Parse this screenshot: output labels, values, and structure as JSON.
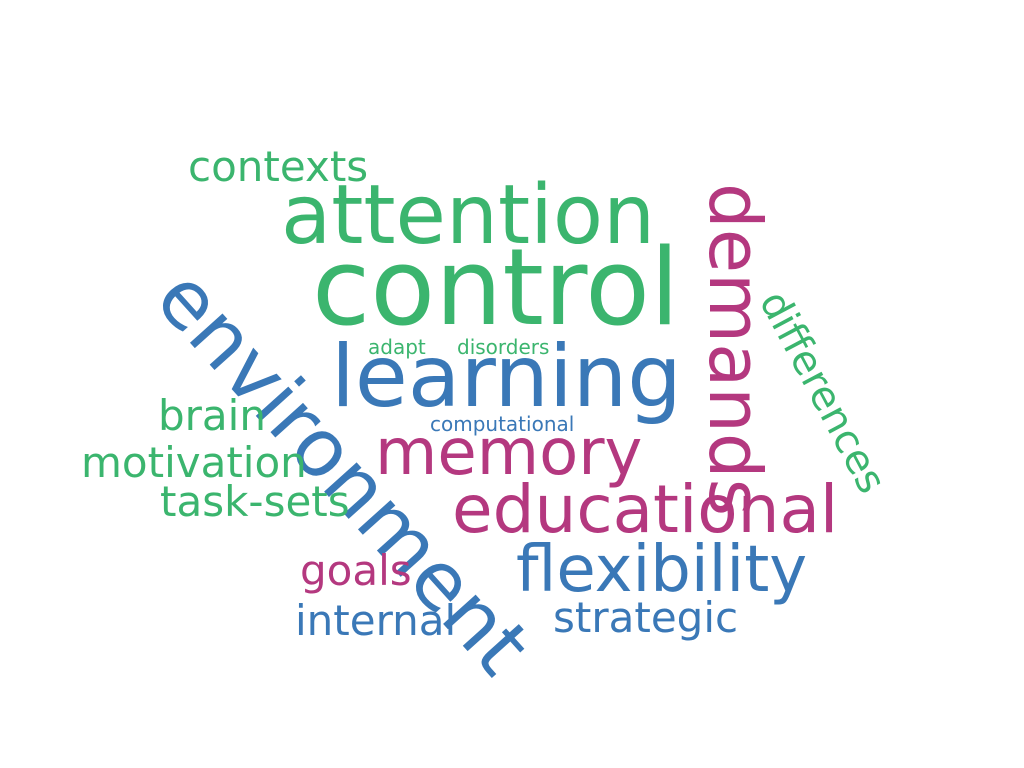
{
  "colors": {
    "green": "#3bb56e",
    "blue": "#3a78b7",
    "purple": "#b4387f"
  },
  "words": {
    "control": "control",
    "attention": "attention",
    "environment": "environment",
    "learning": "learning",
    "demands": "demands",
    "educational": "educational",
    "memory": "memory",
    "flexibility": "flexibility",
    "differences": "differences",
    "contexts": "contexts",
    "brain": "brain",
    "motivation": "motivation",
    "task_sets": "task-sets",
    "goals": "goals",
    "internal": "internal",
    "strategic": "strategic",
    "adapt": "adapt",
    "disorders": "disorders",
    "computational": "computational"
  }
}
